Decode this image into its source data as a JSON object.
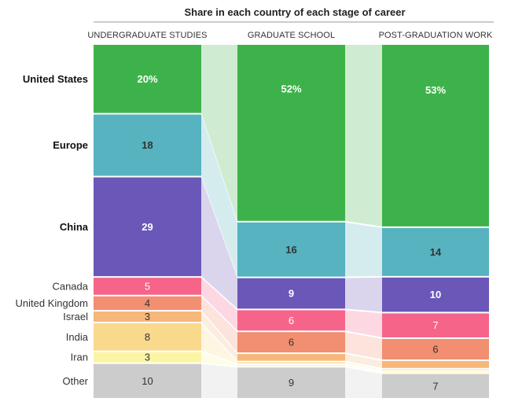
{
  "chart_data": {
    "type": "alluvial",
    "title": "Share in each country of each stage of career",
    "stages": [
      "UNDERGRADUATE STUDIES",
      "GRADUATE SCHOOL",
      "POST-GRADUATION WORK"
    ],
    "categories": [
      {
        "name": "United States",
        "emphasis": true,
        "color": "#3eb24a",
        "values": [
          20,
          52,
          53
        ],
        "labels": [
          "20%",
          "52%",
          "53%"
        ]
      },
      {
        "name": "Europe",
        "emphasis": true,
        "color": "#56b3bf",
        "values": [
          18,
          16,
          14
        ],
        "labels": [
          "18",
          "16",
          "14"
        ]
      },
      {
        "name": "China",
        "emphasis": true,
        "color": "#6a57b8",
        "values": [
          29,
          9,
          10
        ],
        "labels": [
          "29",
          "9",
          "10"
        ]
      },
      {
        "name": "Canada",
        "emphasis": false,
        "color": "#f6648a",
        "values": [
          5,
          6,
          7
        ],
        "labels": [
          "5",
          "6",
          "7"
        ]
      },
      {
        "name": "United Kingdom",
        "emphasis": false,
        "color": "#f18f70",
        "values": [
          4,
          6,
          6
        ],
        "labels": [
          "4",
          "6",
          "6"
        ]
      },
      {
        "name": "Israel",
        "emphasis": false,
        "color": "#f6b77a",
        "values": [
          3,
          2,
          2
        ],
        "labels": [
          "3",
          "",
          ""
        ]
      },
      {
        "name": "India",
        "emphasis": false,
        "color": "#f9d98c",
        "values": [
          8,
          0.3,
          0.2
        ],
        "labels": [
          "8",
          "",
          ""
        ]
      },
      {
        "name": "Iran",
        "emphasis": false,
        "color": "#fbf5a3",
        "values": [
          3,
          0.3,
          0.2
        ],
        "labels": [
          "3",
          "",
          ""
        ]
      },
      {
        "name": "Other",
        "emphasis": false,
        "color": "#cccccc",
        "values": [
          10,
          9,
          7
        ],
        "labels": [
          "10",
          "9",
          "7"
        ]
      }
    ]
  }
}
